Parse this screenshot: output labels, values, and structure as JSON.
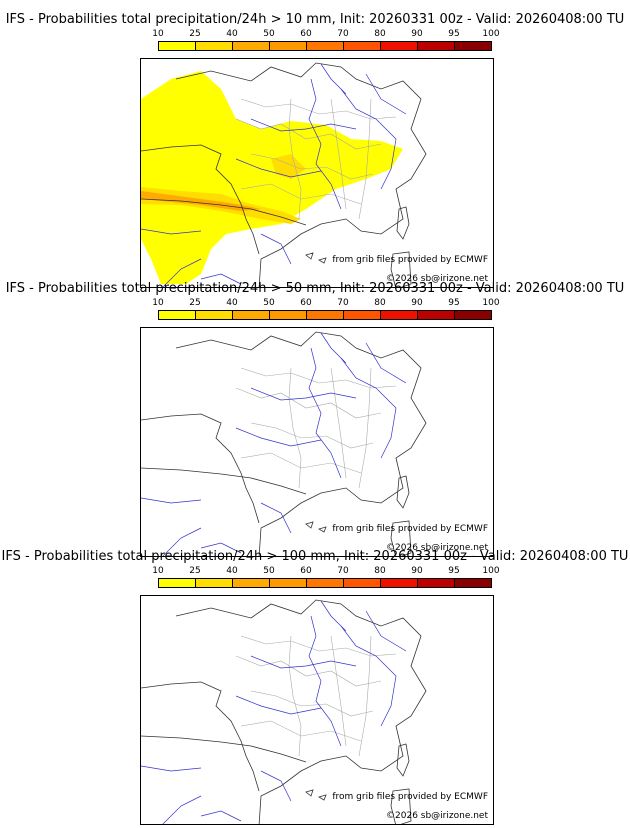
{
  "legend": {
    "ticks": [
      "10",
      "25",
      "40",
      "50",
      "60",
      "70",
      "80",
      "90",
      "95",
      "100"
    ],
    "colors": [
      "#ffff00",
      "#ffdd00",
      "#ffaa00",
      "#ff9900",
      "#ff7700",
      "#ff5500",
      "#ee1100",
      "#bb0000",
      "#880000"
    ]
  },
  "panels": [
    {
      "title": "IFS - Probabilities total precipitation/24h > 10 mm, Init: 20260331 00z - Valid: 20260408:00 TU",
      "credit": "from grib files provided by ECMWF",
      "copyright": "©2026 sb@irizone.net",
      "has_precip": true
    },
    {
      "title": "IFS - Probabilities total precipitation/24h > 50 mm, Init: 20260331 00z - Valid: 20260408:00 TU",
      "credit": "from grib files provided by ECMWF",
      "copyright": "©2026 sb@irizone.net",
      "has_precip": false
    },
    {
      "title": "IFS - Probabilities total precipitation/24h > 100 mm, Init: 20260331 00z - Valid: 20260408:00 TU",
      "credit": "from grib files provided by ECMWF",
      "copyright": "©2026 sb@irizone.net",
      "has_precip": false
    }
  ]
}
